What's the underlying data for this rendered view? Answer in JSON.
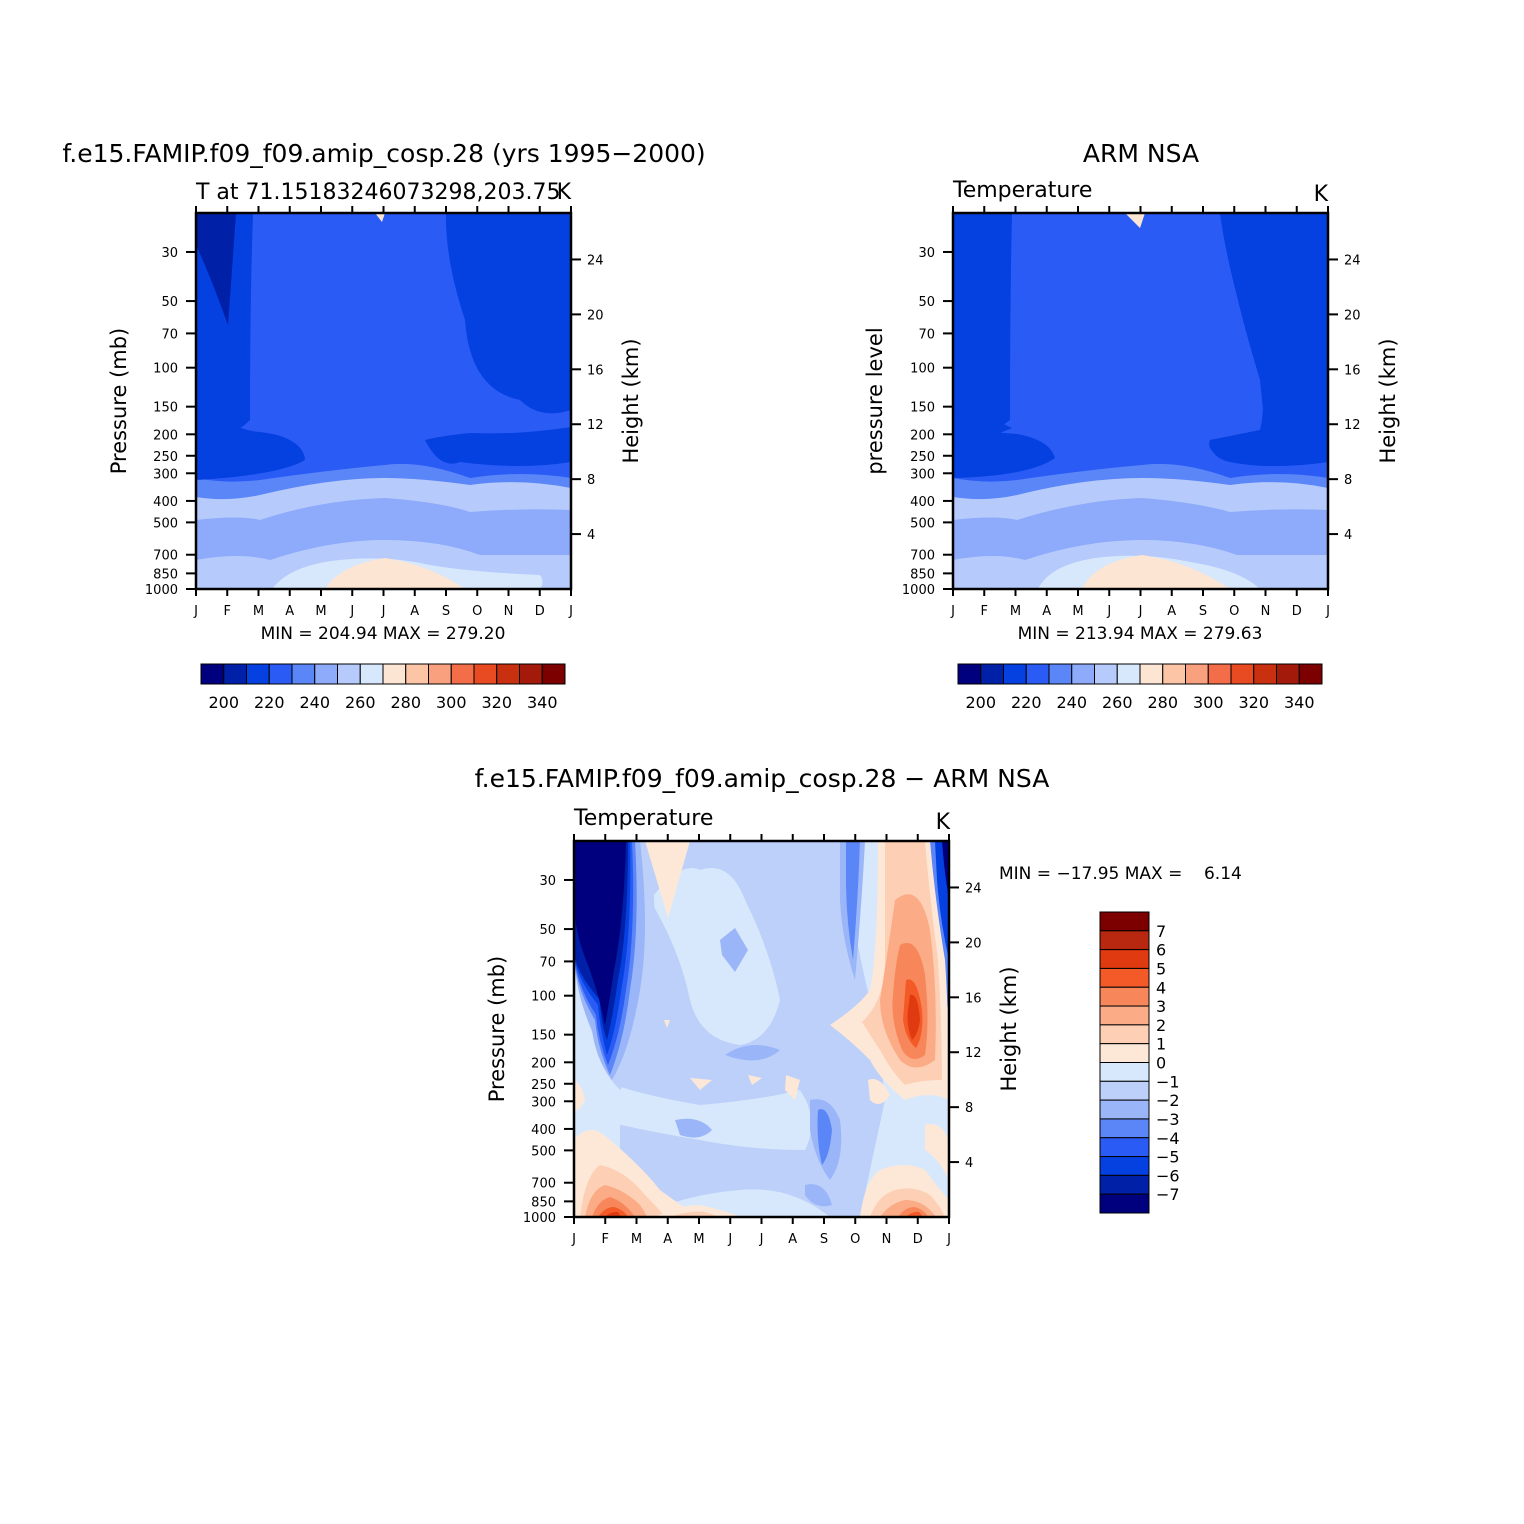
{
  "month_ticks": [
    "J",
    "F",
    "M",
    "A",
    "M",
    "J",
    "J",
    "A",
    "S",
    "O",
    "N",
    "D",
    "J"
  ],
  "pressure_ticks": [
    "30",
    "50",
    "70",
    "100",
    "150",
    "200",
    "250",
    "300",
    "400",
    "500",
    "700",
    "850",
    "1000"
  ],
  "height_ticks": [
    "24",
    "20",
    "16",
    "12",
    "8",
    "4"
  ],
  "panels": {
    "model": {
      "title": "f.e15.FAMIP.f09_f09.amip_cosp.28 (yrs 1995−2000)",
      "subtitle": "T at 71.15183246073298,203.75",
      "units": "K",
      "ylabel": "Pressure (mb)",
      "y2label": "Height (km)",
      "stats": "MIN = 204.94 MAX = 279.20"
    },
    "obs": {
      "title": "ARM NSA",
      "subtitle": "Temperature",
      "units": "K",
      "ylabel": "pressure level",
      "y2label": "Height (km)",
      "stats": "MIN = 213.94 MAX = 279.63"
    },
    "diff": {
      "title": "f.e15.FAMIP.f09_f09.amip_cosp.28 − ARM NSA",
      "subtitle": "Temperature",
      "units": "K",
      "ylabel": "Pressure (mb)",
      "y2label": "Height (km)",
      "stats": "MIN = −17.95 MAX =    6.14"
    }
  },
  "colorbar_abs": {
    "labels": [
      "200",
      "220",
      "240",
      "260",
      "280",
      "300",
      "320",
      "340"
    ],
    "colors": [
      "#00007f",
      "#0020a8",
      "#0540e0",
      "#2a5cf5",
      "#5b86f7",
      "#8eaafa",
      "#b6cbfc",
      "#d8e8fc",
      "#fde5d3",
      "#fcc5a6",
      "#f9a07e",
      "#f26d48",
      "#e84a22",
      "#c83010",
      "#a31a0a",
      "#7d0000"
    ]
  },
  "colorbar_diff": {
    "labels": [
      "7",
      "6",
      "5",
      "4",
      "3",
      "2",
      "1",
      "0",
      "−1",
      "−2",
      "−3",
      "−4",
      "−5",
      "−6",
      "−7"
    ],
    "colors": [
      "#7d0000",
      "#b82810",
      "#e03a10",
      "#f45a28",
      "#f7875a",
      "#fbac86",
      "#fdd0b6",
      "#fde8d8",
      "#d8e8fc",
      "#bcd0fa",
      "#9ab6f8",
      "#5b86f7",
      "#2a5cf5",
      "#0540e0",
      "#0020a8",
      "#00007f"
    ]
  },
  "chart_data": [
    {
      "type": "heatmap",
      "title": "f.e15.FAMIP.f09_f09.amip_cosp.28 (yrs 1995−2000)",
      "subtitle": "T at 71.15183246073298,203.75",
      "xlabel": "",
      "ylabel": "Pressure (mb)",
      "y2label": "Height (km)",
      "x": [
        "J",
        "F",
        "M",
        "A",
        "M",
        "J",
        "J",
        "A",
        "S",
        "O",
        "N",
        "D",
        "J"
      ],
      "y_pressure": [
        30,
        50,
        70,
        100,
        150,
        200,
        250,
        300,
        400,
        500,
        700,
        850,
        1000
      ],
      "y2_height_km": [
        24,
        20,
        16,
        12,
        8,
        4
      ],
      "y_scale": "log",
      "units": "K",
      "min": 204.94,
      "max": 279.2,
      "contour_levels": [
        200,
        210,
        220,
        230,
        240,
        250,
        260,
        270,
        280,
        290,
        300,
        310,
        320,
        330,
        340
      ]
    },
    {
      "type": "heatmap",
      "title": "ARM NSA",
      "subtitle": "Temperature",
      "xlabel": "",
      "ylabel": "pressure level",
      "y2label": "Height (km)",
      "x": [
        "J",
        "F",
        "M",
        "A",
        "M",
        "J",
        "J",
        "A",
        "S",
        "O",
        "N",
        "D",
        "J"
      ],
      "y_pressure": [
        30,
        50,
        70,
        100,
        150,
        200,
        250,
        300,
        400,
        500,
        700,
        850,
        1000
      ],
      "y2_height_km": [
        24,
        20,
        16,
        12,
        8,
        4
      ],
      "y_scale": "log",
      "units": "K",
      "min": 213.94,
      "max": 279.63,
      "contour_levels": [
        200,
        210,
        220,
        230,
        240,
        250,
        260,
        270,
        280,
        290,
        300,
        310,
        320,
        330,
        340
      ]
    },
    {
      "type": "heatmap",
      "title": "f.e15.FAMIP.f09_f09.amip_cosp.28 − ARM NSA",
      "subtitle": "Temperature",
      "xlabel": "",
      "ylabel": "Pressure (mb)",
      "y2label": "Height (km)",
      "x": [
        "J",
        "F",
        "M",
        "A",
        "M",
        "J",
        "J",
        "A",
        "S",
        "O",
        "N",
        "D",
        "J"
      ],
      "y_pressure": [
        30,
        50,
        70,
        100,
        150,
        200,
        250,
        300,
        400,
        500,
        700,
        850,
        1000
      ],
      "y2_height_km": [
        24,
        20,
        16,
        12,
        8,
        4
      ],
      "y_scale": "log",
      "units": "K",
      "min": -17.95,
      "max": 6.14,
      "contour_levels": [
        -7,
        -6,
        -5,
        -4,
        -3,
        -2,
        -1,
        0,
        1,
        2,
        3,
        4,
        5,
        6,
        7
      ]
    }
  ]
}
